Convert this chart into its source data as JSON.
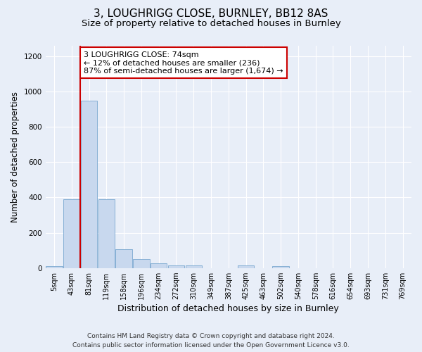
{
  "title": "3, LOUGHRIGG CLOSE, BURNLEY, BB12 8AS",
  "subtitle": "Size of property relative to detached houses in Burnley",
  "xlabel": "Distribution of detached houses by size in Burnley",
  "ylabel": "Number of detached properties",
  "bin_labels": [
    "5sqm",
    "43sqm",
    "81sqm",
    "119sqm",
    "158sqm",
    "196sqm",
    "234sqm",
    "272sqm",
    "310sqm",
    "349sqm",
    "387sqm",
    "425sqm",
    "463sqm",
    "502sqm",
    "540sqm",
    "578sqm",
    "616sqm",
    "654sqm",
    "693sqm",
    "731sqm",
    "769sqm"
  ],
  "bar_heights": [
    10,
    390,
    950,
    390,
    105,
    52,
    25,
    15,
    15,
    0,
    0,
    15,
    0,
    10,
    0,
    0,
    0,
    0,
    0,
    0,
    0
  ],
  "bar_color": "#c8d8ee",
  "bar_edge_color": "#7aa8d0",
  "vline_x_idx": 2,
  "vline_color": "#cc0000",
  "annotation_text": "3 LOUGHRIGG CLOSE: 74sqm\n← 12% of detached houses are smaller (236)\n87% of semi-detached houses are larger (1,674) →",
  "annotation_box_facecolor": "#ffffff",
  "annotation_box_edgecolor": "#cc0000",
  "ylim": [
    0,
    1260
  ],
  "yticks": [
    0,
    200,
    400,
    600,
    800,
    1000,
    1200
  ],
  "bg_color": "#e8eef8",
  "plot_bg_color": "#e8eef8",
  "title_fontsize": 11,
  "subtitle_fontsize": 9.5,
  "xlabel_fontsize": 9,
  "ylabel_fontsize": 8.5,
  "tick_fontsize": 7,
  "annotation_fontsize": 8,
  "footer_fontsize": 6.5,
  "footer_line1": "Contains HM Land Registry data © Crown copyright and database right 2024.",
  "footer_line2": "Contains public sector information licensed under the Open Government Licence v3.0."
}
